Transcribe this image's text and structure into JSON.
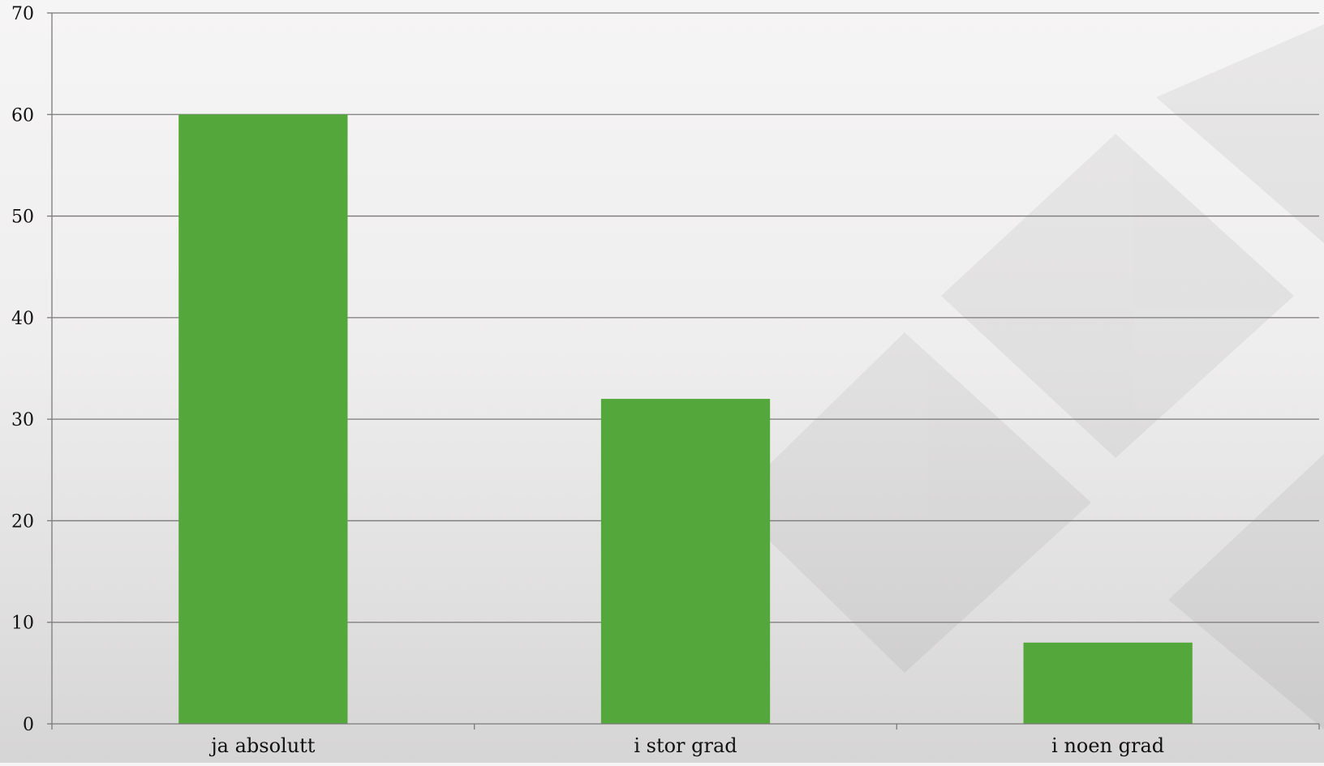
{
  "chart_data": {
    "type": "bar",
    "title": "",
    "xlabel": "",
    "ylabel": "",
    "categories": [
      "ja absolutt",
      "i stor grad",
      "i noen grad"
    ],
    "values": [
      60,
      32,
      8
    ],
    "ylim": [
      0,
      70
    ],
    "yticks": [
      0,
      10,
      20,
      30,
      40,
      50,
      60,
      70
    ],
    "grid": true,
    "legend": "none",
    "bar_color": "#54a73a",
    "grid_color": "#7a7a7a",
    "axis_color": "#7a7a7a"
  }
}
